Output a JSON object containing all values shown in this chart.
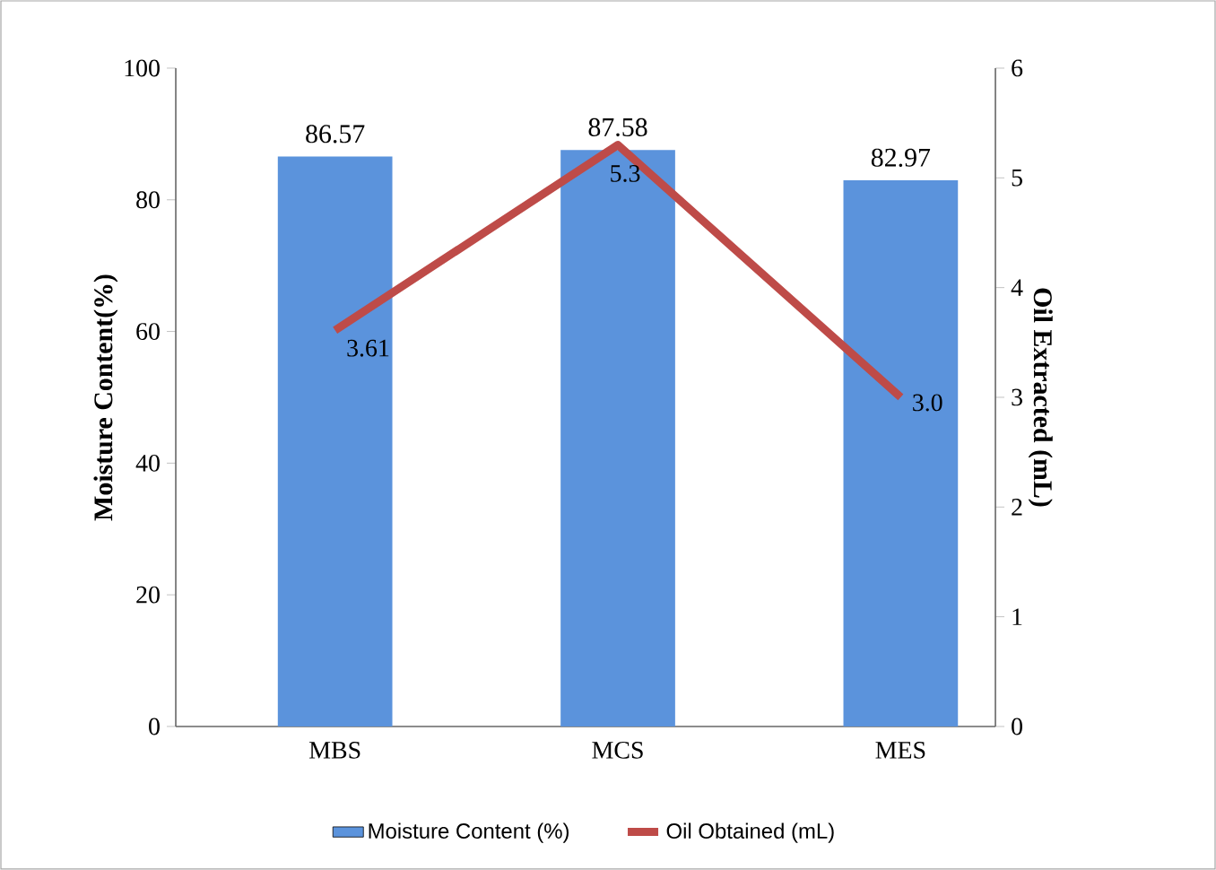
{
  "chart_data": {
    "type": "bar",
    "categories": [
      "MBS",
      "MCS",
      "MES"
    ],
    "ylabel": "Moisture Content(%)",
    "y2label": "Oil Extracted (mL)",
    "ylim": [
      0,
      100
    ],
    "yticks": [
      0,
      20,
      40,
      60,
      80,
      100
    ],
    "y2lim": [
      0,
      6
    ],
    "y2ticks": [
      0,
      1,
      2,
      3,
      4,
      5,
      6
    ],
    "series": [
      {
        "name": "Moisture Content (%)",
        "color": "#5b93dc",
        "values": [
          86.57,
          87.58,
          82.97
        ],
        "value_labels": [
          "86.57",
          "87.58",
          "82.97"
        ]
      },
      {
        "name": "Oil Obtained (mL)",
        "type": "line",
        "axis": "y2",
        "color": "#be4b48",
        "values": [
          3.61,
          5.3,
          3.0
        ],
        "value_labels": [
          "3.61",
          "5.3",
          "3.0"
        ]
      }
    ],
    "grid": false,
    "legend": "bottom",
    "marker": "none",
    "line_style": "solid"
  }
}
